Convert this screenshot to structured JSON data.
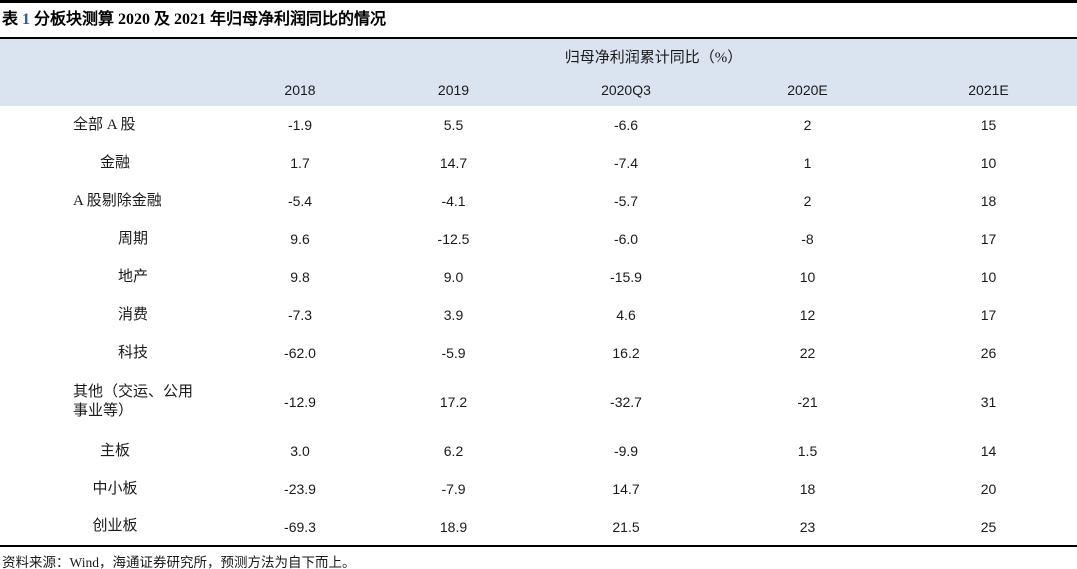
{
  "title": {
    "parts": [
      {
        "text": "表 "
      },
      {
        "text": "1"
      },
      {
        "text": " 分板块测算 2020 及 2021 年归母净利润同比的情况"
      }
    ]
  },
  "chart_data": {
    "type": "table",
    "group_header": "归母净利润累计同比（%）",
    "columns": [
      "2018",
      "2019",
      "2020Q3",
      "2020E",
      "2021E"
    ],
    "rows": [
      {
        "label": "全部 A 股",
        "indent": 0,
        "values": [
          "-1.9",
          "5.5",
          "-6.6",
          "2",
          "15"
        ]
      },
      {
        "label": "金融",
        "indent": 1,
        "values": [
          "1.7",
          "14.7",
          "-7.4",
          "1",
          "10"
        ]
      },
      {
        "label": "A 股剔除金融",
        "indent": 0,
        "values": [
          "-5.4",
          "-4.1",
          "-5.7",
          "2",
          "18"
        ]
      },
      {
        "label": "周期",
        "indent": 2,
        "values": [
          "9.6",
          "-12.5",
          "-6.0",
          "-8",
          "17"
        ]
      },
      {
        "label": "地产",
        "indent": 2,
        "values": [
          "9.8",
          "9.0",
          "-15.9",
          "10",
          "10"
        ]
      },
      {
        "label": "消费",
        "indent": 2,
        "values": [
          "-7.3",
          "3.9",
          "4.6",
          "12",
          "17"
        ]
      },
      {
        "label": "科技",
        "indent": 2,
        "values": [
          "-62.0",
          "-5.9",
          "16.2",
          "22",
          "26"
        ]
      },
      {
        "label": "其他（交运、公用\n事业等）",
        "indent": 0,
        "values": [
          "-12.9",
          "17.2",
          "-32.7",
          "-21",
          "31"
        ]
      },
      {
        "label": "主板",
        "indent": 1,
        "values": [
          "3.0",
          "6.2",
          "-9.9",
          "1.5",
          "14"
        ]
      },
      {
        "label": "中小板",
        "indent": 1,
        "values": [
          "-23.9",
          "-7.9",
          "14.7",
          "18",
          "20"
        ]
      },
      {
        "label": "创业板",
        "indent": 1,
        "values": [
          "-69.3",
          "18.9",
          "21.5",
          "23",
          "25"
        ]
      }
    ]
  },
  "footer": {
    "source_text": "资料来源：Wind，海通证券研究所，预测方法为自下而上。"
  },
  "colors": {
    "header_band": "#dae3f0",
    "rule": "#000000",
    "title_number_blue": "#2b57a7"
  }
}
